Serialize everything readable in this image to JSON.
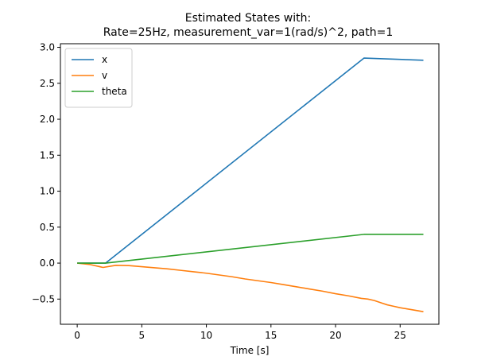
{
  "chart_data": {
    "type": "line",
    "title": "Estimated States with:",
    "subtitle": "Rate=25Hz, measurement_var=1(rad/s)^2, path=1",
    "xlabel": "Time [s]",
    "ylabel": "",
    "xlim": [
      -1.3,
      28.0
    ],
    "ylim": [
      -0.85,
      3.05
    ],
    "xticks": [
      0,
      5,
      10,
      15,
      20,
      25
    ],
    "yticks": [
      -0.5,
      0.0,
      0.5,
      1.0,
      1.5,
      2.0,
      2.5,
      3.0
    ],
    "xtick_labels": [
      "0",
      "5",
      "10",
      "15",
      "20",
      "25"
    ],
    "ytick_labels": [
      "−0.5",
      "0.0",
      "0.5",
      "1.0",
      "1.5",
      "2.0",
      "2.5",
      "3.0"
    ],
    "grid": false,
    "legend_position": "top-left",
    "series": [
      {
        "name": "x",
        "color": "#1f77b4",
        "points": [
          [
            0,
            0
          ],
          [
            2.2,
            0
          ],
          [
            22.2,
            2.85
          ],
          [
            26.8,
            2.82
          ]
        ]
      },
      {
        "name": "v",
        "color": "#ff7f0e",
        "points": [
          [
            0,
            0
          ],
          [
            1.0,
            -0.02
          ],
          [
            2.0,
            -0.06
          ],
          [
            3.0,
            -0.03
          ],
          [
            4.0,
            -0.035
          ],
          [
            5.0,
            -0.05
          ],
          [
            6.0,
            -0.065
          ],
          [
            7.0,
            -0.08
          ],
          [
            8.0,
            -0.1
          ],
          [
            9.0,
            -0.12
          ],
          [
            10.0,
            -0.14
          ],
          [
            11.0,
            -0.165
          ],
          [
            12.0,
            -0.19
          ],
          [
            13.0,
            -0.22
          ],
          [
            14.0,
            -0.245
          ],
          [
            15.0,
            -0.27
          ],
          [
            16.0,
            -0.3
          ],
          [
            17.0,
            -0.33
          ],
          [
            18.0,
            -0.36
          ],
          [
            19.0,
            -0.39
          ],
          [
            20.0,
            -0.425
          ],
          [
            21.0,
            -0.455
          ],
          [
            22.0,
            -0.49
          ],
          [
            22.5,
            -0.5
          ],
          [
            23.0,
            -0.52
          ],
          [
            23.5,
            -0.55
          ],
          [
            24.0,
            -0.58
          ],
          [
            24.5,
            -0.6
          ],
          [
            25.0,
            -0.62
          ],
          [
            25.5,
            -0.635
          ],
          [
            26.0,
            -0.65
          ],
          [
            26.8,
            -0.675
          ]
        ]
      },
      {
        "name": "theta",
        "color": "#2ca02c",
        "points": [
          [
            0,
            0
          ],
          [
            2.2,
            0
          ],
          [
            22.2,
            0.4
          ],
          [
            26.8,
            0.4
          ]
        ]
      }
    ]
  }
}
